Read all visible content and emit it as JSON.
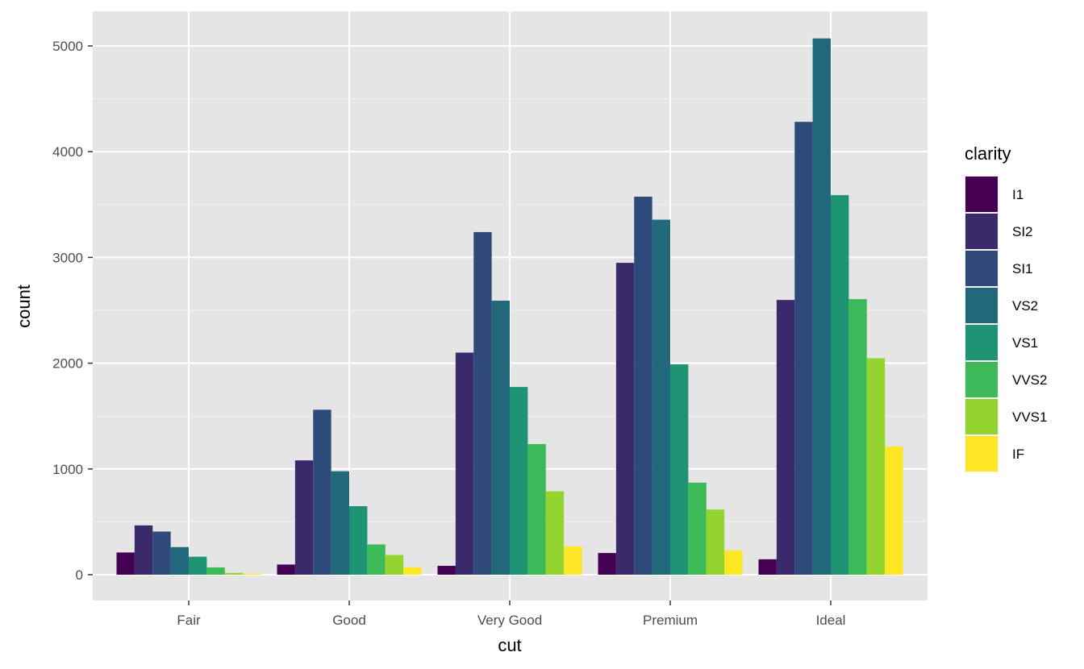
{
  "chart_data": {
    "type": "bar",
    "xlabel": "cut",
    "ylabel": "count",
    "categories": [
      "Fair",
      "Good",
      "Very Good",
      "Premium",
      "Ideal"
    ],
    "ylim": [
      -250,
      5300
    ],
    "yticks": [
      0,
      1000,
      2000,
      3000,
      4000,
      5000
    ],
    "grid": true,
    "legend": {
      "title": "clarity",
      "position": "right"
    },
    "series": [
      {
        "name": "I1",
        "color": "#440154",
        "values": [
          210,
          96,
          84,
          205,
          146
        ]
      },
      {
        "name": "SI2",
        "color": "#3B2A6B",
        "values": [
          466,
          1081,
          2100,
          2949,
          2598
        ]
      },
      {
        "name": "SI1",
        "color": "#2D4A7B",
        "values": [
          408,
          1560,
          3240,
          3575,
          4282
        ]
      },
      {
        "name": "VS2",
        "color": "#21697A",
        "values": [
          261,
          978,
          2591,
          3357,
          5071
        ]
      },
      {
        "name": "VS1",
        "color": "#1F9474",
        "values": [
          170,
          648,
          1775,
          1989,
          3589
        ]
      },
      {
        "name": "VVS2",
        "color": "#3DBA57",
        "values": [
          69,
          286,
          1235,
          870,
          2606
        ]
      },
      {
        "name": "VVS1",
        "color": "#93D42E",
        "values": [
          17,
          186,
          789,
          616,
          2047
        ]
      },
      {
        "name": "IF",
        "color": "#FDE725",
        "values": [
          9,
          71,
          268,
          230,
          1212
        ]
      }
    ]
  }
}
